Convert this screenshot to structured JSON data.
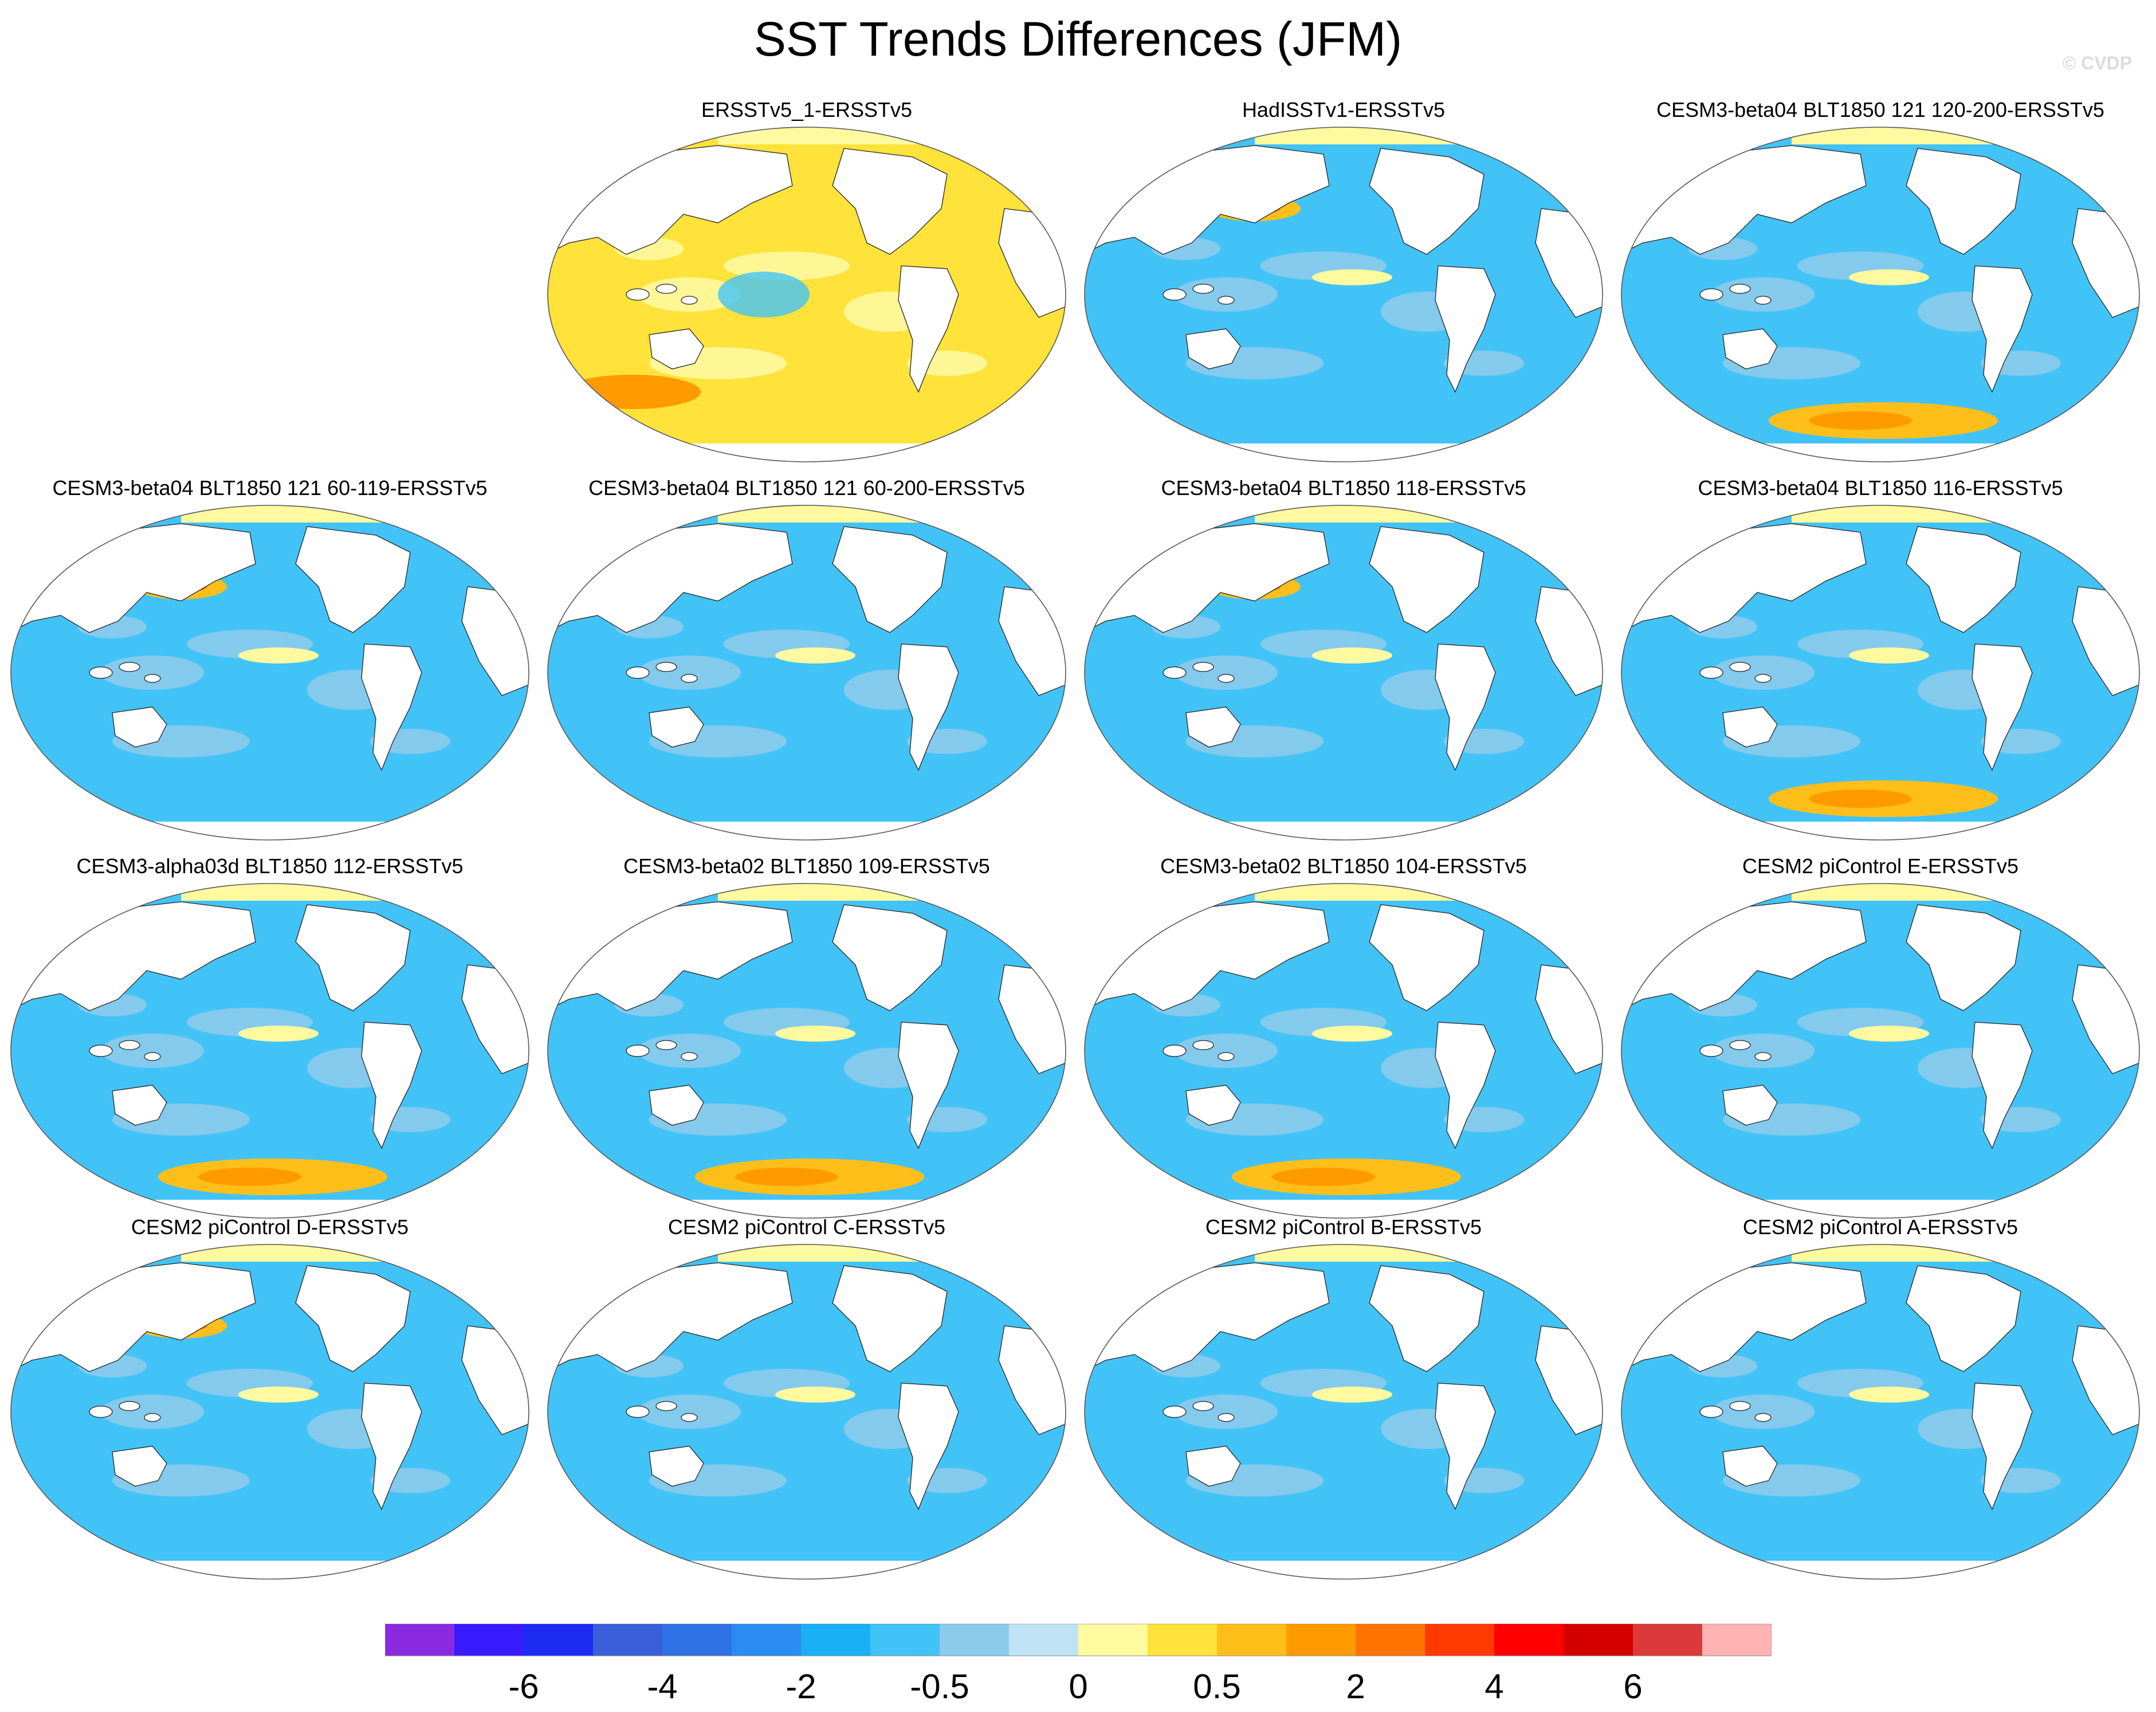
{
  "title": "SST Trends Differences (JFM)",
  "credit": "© CVDP",
  "panels": [
    {
      "label": "ERSSTv5_1-ERSSTv5",
      "pattern": "warm"
    },
    {
      "label": "HadISSTv1-ERSSTv5",
      "pattern": "cool-npwarm"
    },
    {
      "label": "CESM3-beta04 BLT1850 121 120-200-ERSSTv5",
      "pattern": "cool-sowarm"
    },
    {
      "label": "CESM3-beta04 BLT1850 121 60-119-ERSSTv5",
      "pattern": "cool-np"
    },
    {
      "label": "CESM3-beta04 BLT1850 121 60-200-ERSSTv5",
      "pattern": "cool"
    },
    {
      "label": "CESM3-beta04 BLT1850 118-ERSSTv5",
      "pattern": "cool-np"
    },
    {
      "label": "CESM3-beta04 BLT1850 116-ERSSTv5",
      "pattern": "cool-sowarm"
    },
    {
      "label": "CESM3-alpha03d BLT1850 112-ERSSTv5",
      "pattern": "cool-sowarm"
    },
    {
      "label": "CESM3-beta02 BLT1850 109-ERSSTv5",
      "pattern": "cool-sowarm"
    },
    {
      "label": "CESM3-beta02 BLT1850 104-ERSSTv5",
      "pattern": "cool-sowarm"
    },
    {
      "label": "CESM2 piControl E-ERSSTv5",
      "pattern": "cool"
    },
    {
      "label": "CESM2 piControl D-ERSSTv5",
      "pattern": "cool-np"
    },
    {
      "label": "CESM2 piControl C-ERSSTv5",
      "pattern": "cool"
    },
    {
      "label": "CESM2 piControl B-ERSSTv5",
      "pattern": "cool"
    },
    {
      "label": "CESM2 piControl A-ERSSTv5",
      "pattern": "cool"
    }
  ],
  "colorbar": {
    "colors": [
      "#8a2be2",
      "#3a1aff",
      "#1c2cf2",
      "#3a5fdb",
      "#2f72e6",
      "#2a8cf0",
      "#1ab0f5",
      "#42c3f7",
      "#8ccbeb",
      "#bfe3f5",
      "#fff9a0",
      "#ffe23a",
      "#ffbf1a",
      "#ff9b00",
      "#ff7300",
      "#ff3a00",
      "#ff0000",
      "#d40000",
      "#dc3a3a",
      "#ffb3b3"
    ],
    "tick_labels": [
      "-6",
      "-4",
      "-2",
      "-0.5",
      "0",
      "0.5",
      "2",
      "4",
      "6"
    ]
  }
}
